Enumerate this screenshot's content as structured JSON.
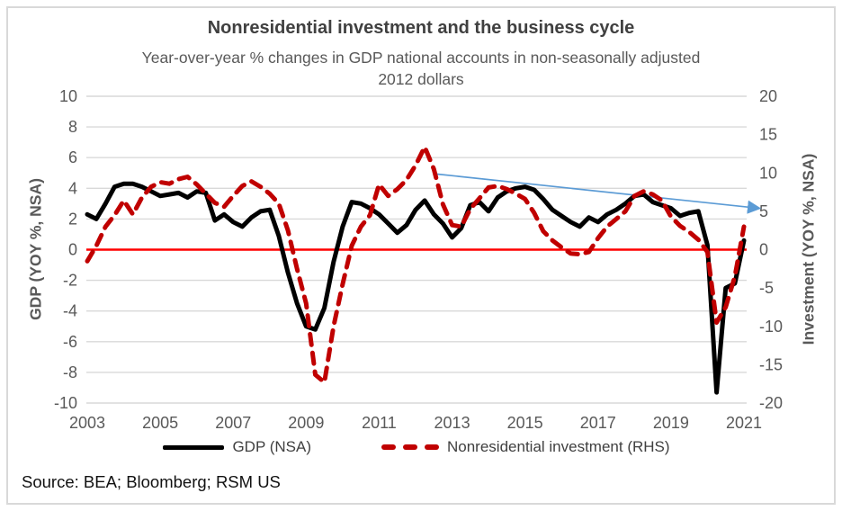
{
  "title": "Nonresidential investment and the business cycle",
  "subtitle": "Year-over-year % changes in GDP national accounts in non-seasonally adjusted 2012 dollars",
  "source": "Source: BEA; Bloomberg; RSM US",
  "legend": {
    "items": [
      {
        "label": "GDP (NSA)",
        "color": "#000000",
        "style": "solid"
      },
      {
        "label": "Nonresidential investment (RHS)",
        "color": "#c00000",
        "style": "dashed"
      }
    ]
  },
  "colors": {
    "gridline": "#d9d9d9",
    "tick_text": "#595959",
    "zero_line": "#ff0000",
    "arrow": "#5b9bd5",
    "frame": "#d9d9d9"
  },
  "chart_data": {
    "type": "line",
    "x_start": 2003.0,
    "x_step": 0.25,
    "n_points": 73,
    "x_range_labels": [
      "2003Q1",
      "2021Q1"
    ],
    "x_ticks": [
      2003,
      2005,
      2007,
      2009,
      2011,
      2013,
      2015,
      2017,
      2019,
      2021
    ],
    "left_axis": {
      "title": "GDP (YOY %, NSA)",
      "min": -10,
      "max": 10,
      "ticks": [
        10,
        8,
        6,
        4,
        2,
        0,
        -2,
        -4,
        -6,
        -8,
        -10
      ]
    },
    "right_axis": {
      "title": "Investment (YOY %, NSA)",
      "min": -20,
      "max": 20,
      "ticks": [
        20,
        15,
        10,
        5,
        0,
        -5,
        -10,
        -15,
        -20
      ]
    },
    "grid": "horizontal",
    "legend_position": "bottom",
    "zero_line": {
      "value": 0,
      "color": "#ff0000"
    },
    "annotation_arrow": {
      "color": "#5b9bd5",
      "from": {
        "x_year": 2012.5,
        "value_rhs": 9.9
      },
      "to": {
        "x_year": 2021.4,
        "value_rhs": 5.4
      }
    },
    "series": [
      {
        "name": "GDP (NSA)",
        "axis": "left",
        "color": "#000000",
        "dash": false,
        "values": [
          2.3,
          2.0,
          3.0,
          4.1,
          4.3,
          4.3,
          4.1,
          3.8,
          3.5,
          3.6,
          3.7,
          3.4,
          3.8,
          3.7,
          1.9,
          2.3,
          1.8,
          1.5,
          2.1,
          2.5,
          2.6,
          0.9,
          -1.5,
          -3.5,
          -5.0,
          -5.2,
          -3.8,
          -0.8,
          1.5,
          3.1,
          3.0,
          2.7,
          2.3,
          1.7,
          1.1,
          1.6,
          2.6,
          3.2,
          2.3,
          1.7,
          0.8,
          1.4,
          2.9,
          3.1,
          2.5,
          3.4,
          3.8,
          4.0,
          4.1,
          3.9,
          3.3,
          2.6,
          2.2,
          1.8,
          1.5,
          2.1,
          1.8,
          2.3,
          2.6,
          3.0,
          3.5,
          3.6,
          3.1,
          2.9,
          2.7,
          2.2,
          2.4,
          2.5,
          0.3,
          -9.3,
          -2.5,
          -2.2,
          0.6
        ]
      },
      {
        "name": "Nonresidential investment (RHS)",
        "axis": "right",
        "color": "#c00000",
        "dash": true,
        "values": [
          -1.5,
          0.5,
          3.0,
          4.5,
          6.4,
          4.6,
          6.8,
          8.2,
          8.8,
          8.6,
          9.2,
          9.5,
          8.5,
          7.3,
          6.1,
          5.6,
          7.0,
          8.3,
          8.9,
          8.2,
          7.3,
          6.0,
          2.5,
          -2.5,
          -7.0,
          -16.3,
          -17.3,
          -10.0,
          -4.5,
          0.5,
          3.0,
          4.5,
          8.5,
          7.0,
          7.9,
          9.1,
          11.0,
          13.4,
          10.5,
          5.9,
          3.2,
          3.0,
          5.3,
          6.7,
          8.1,
          8.3,
          7.9,
          7.3,
          6.6,
          4.8,
          2.4,
          1.2,
          0.3,
          -0.5,
          -0.6,
          -0.3,
          1.5,
          3.0,
          4.0,
          5.0,
          7.0,
          7.6,
          7.2,
          6.4,
          4.3,
          3.1,
          2.3,
          1.3,
          -0.3,
          -9.5,
          -7.5,
          -3.5,
          3.0
        ]
      }
    ]
  }
}
